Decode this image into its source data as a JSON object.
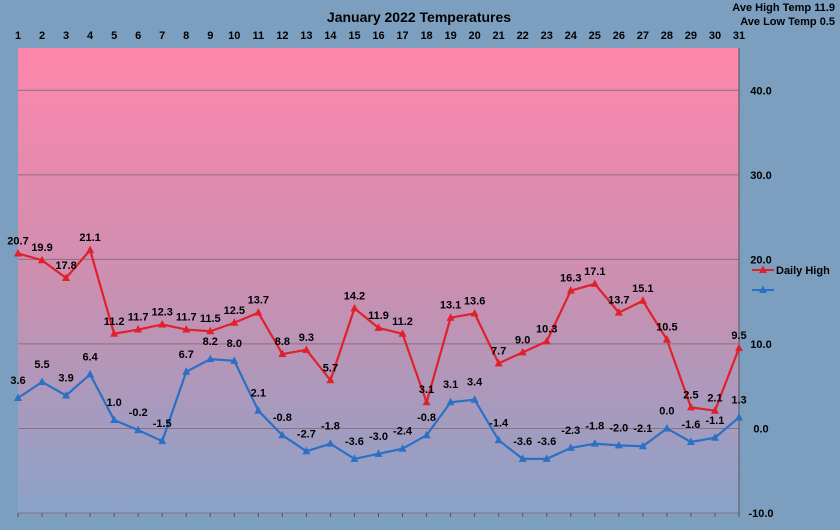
{
  "chart_data": {
    "type": "line",
    "title": "January 2022 Temperatures",
    "x": [
      1,
      2,
      3,
      4,
      5,
      6,
      7,
      8,
      9,
      10,
      11,
      12,
      13,
      14,
      15,
      16,
      17,
      18,
      19,
      20,
      21,
      22,
      23,
      24,
      25,
      26,
      27,
      28,
      29,
      30,
      31
    ],
    "y_ticks": [
      "40.0",
      "30.0",
      "20.0",
      "10.0",
      "0.0",
      "-10.0"
    ],
    "ylim": [
      -10,
      45
    ],
    "grid": true,
    "legend_position": "right",
    "series": [
      {
        "name": "Daily High",
        "color": "#e0202a",
        "values": [
          20.7,
          19.9,
          17.8,
          21.1,
          11.2,
          11.7,
          12.3,
          11.7,
          11.5,
          12.5,
          13.7,
          8.8,
          9.3,
          5.7,
          14.2,
          11.9,
          11.2,
          3.1,
          13.1,
          13.6,
          7.7,
          9.0,
          10.3,
          16.3,
          17.1,
          13.7,
          15.1,
          10.5,
          2.5,
          2.1,
          9.5
        ],
        "labels": [
          "20.7",
          "19.9",
          "17.8",
          "21.1",
          "11.2",
          "11.7",
          "12.3",
          "11.7",
          "11.5",
          "12.5",
          "13.7",
          "8.8",
          "9.3",
          "5.7",
          "14.2",
          "11.9",
          "11.2",
          "3.1",
          "13.1",
          "13.6",
          "7.7",
          "9.0",
          "10.3",
          "16.3",
          "17.1",
          "13.7",
          "15.1",
          "10.5",
          "2.5",
          "2.1",
          "9.5"
        ]
      },
      {
        "name": "",
        "color": "#2a70c4",
        "values": [
          3.6,
          5.5,
          3.9,
          6.4,
          1.0,
          -0.2,
          -1.5,
          6.7,
          8.2,
          8.0,
          2.1,
          -0.8,
          -2.7,
          -1.8,
          -3.6,
          -3.0,
          -2.4,
          -0.8,
          3.1,
          3.4,
          -1.4,
          -3.6,
          -3.6,
          -2.3,
          -1.8,
          -2.0,
          -2.1,
          0.0,
          -1.6,
          -1.1,
          1.3
        ],
        "labels": [
          "3.6",
          "5.5",
          "3.9",
          "6.4",
          "1.0",
          "-0.2",
          "-1.5",
          "6.7",
          "8.2",
          "8.0",
          "2.1",
          "-0.8",
          "-2.7",
          "-1.8",
          "-3.6",
          "-3.0",
          "-2.4",
          "-0.8",
          "3.1",
          "3.4",
          "-1.4",
          "-3.6",
          "-3.6",
          "-2.3",
          "-1.8",
          "-2.0",
          "-2.1",
          "0.0",
          "-1.6",
          "-1.1",
          "1.3"
        ]
      }
    ],
    "annotations": [
      "Ave High Temp 11.9",
      "Ave Low Temp 0.5"
    ]
  }
}
